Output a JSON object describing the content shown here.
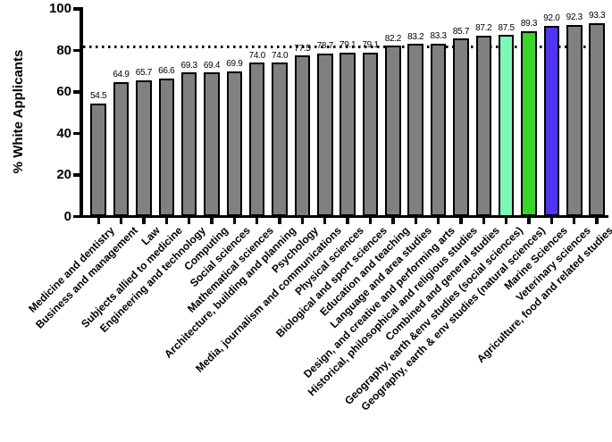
{
  "chart_data": {
    "type": "bar",
    "title": "",
    "xlabel": "",
    "ylabel": "% White Applicants",
    "ylim": [
      0,
      100
    ],
    "yticks": [
      0,
      20,
      40,
      60,
      80,
      100
    ],
    "grid": false,
    "legend": null,
    "reference_line": {
      "value": 81.7,
      "style": "dotted",
      "color": "#000000"
    },
    "categories": [
      "Medicine and dentistry",
      "Business and management",
      "Law",
      "Subjects allied to medicine",
      "Engineering and technology",
      "Computing",
      "Social sciences",
      "Mathematical sciences",
      "Architecture, building and planning",
      "Psychology",
      "Media, journalism and communications",
      "Physical sciences",
      "Biological and sport sciences",
      "Education and teaching",
      "Language and area studies",
      "Design, and creative and performing arts",
      "Historical, philosophical and religious studies",
      "Combined and general studies",
      "Geography, earth &env studies (social sciences)",
      "Geography, earth & env studies (natural sciences)",
      "Marine Sciences",
      "Veterinary sciences",
      "Agriculture, food and related studies"
    ],
    "values": [
      54.5,
      64.9,
      65.7,
      66.6,
      69.3,
      69.4,
      69.9,
      74.0,
      74.0,
      77.5,
      78.7,
      79.1,
      79.1,
      82.2,
      83.2,
      83.3,
      85.7,
      87.2,
      87.5,
      89.3,
      92.0,
      92.3,
      93.3
    ],
    "value_labels": [
      "54.5",
      "64.9",
      "65.7",
      "66.6",
      "69.3",
      "69.4",
      "69.9",
      "74.0",
      "74.0",
      "77.5",
      "78.7",
      "79.1",
      "79.1",
      "82.2",
      "83.2",
      "83.3",
      "85.7",
      "87.2",
      "87.5",
      "89.3",
      "92.0",
      "92.3",
      "93.3"
    ],
    "bar_colors": [
      "#808080",
      "#808080",
      "#808080",
      "#808080",
      "#808080",
      "#808080",
      "#808080",
      "#808080",
      "#808080",
      "#808080",
      "#808080",
      "#808080",
      "#808080",
      "#808080",
      "#808080",
      "#808080",
      "#808080",
      "#808080",
      "#7CF9B6",
      "#3BD42B",
      "#5235F0",
      "#808080",
      "#808080"
    ],
    "colors": {
      "default_bar": "#808080",
      "highlight_aquamarine": "#7CF9B6",
      "highlight_green": "#3BD42B",
      "highlight_blue": "#5235F0",
      "bar_border": "#000000",
      "axis": "#000000",
      "background": "#FFFFFF"
    }
  }
}
